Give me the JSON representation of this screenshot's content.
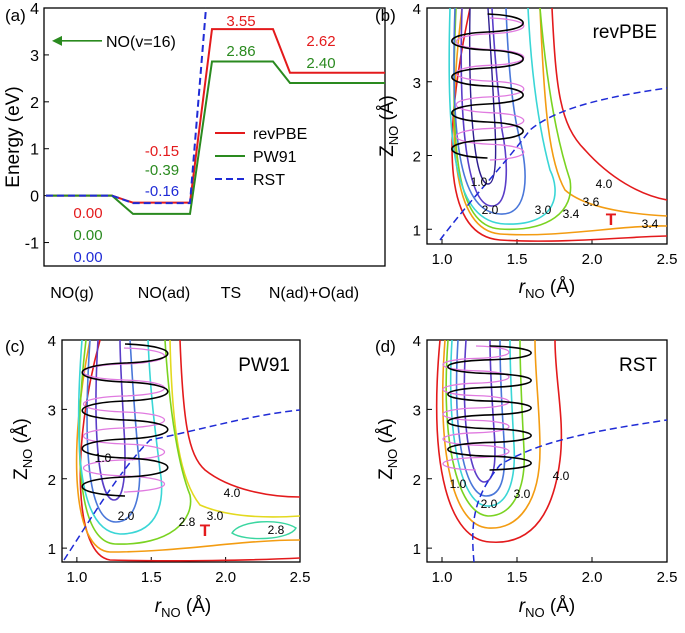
{
  "chart_data": [
    {
      "type": "line",
      "panel_label": "(a)",
      "ylabel": "Energy (eV)",
      "ylim": [
        -1.5,
        4
      ],
      "yticks": [
        "-1",
        "0",
        "1",
        "2",
        "3",
        "4"
      ],
      "yticks_values": [
        -1,
        0,
        1,
        2,
        3,
        4
      ],
      "categories": [
        "NO(g)",
        "NO(ad)",
        "TS",
        "N(ad)+O(ad)"
      ],
      "annotation": "NO(v=16)",
      "annotation_value": 3.3,
      "series": [
        {
          "name": "revPBE",
          "color": "#e31a1c",
          "style": "solid",
          "values": [
            0.0,
            -0.15,
            3.55,
            2.62
          ],
          "labels": [
            "0.00",
            "-0.15",
            "3.55",
            "2.62"
          ]
        },
        {
          "name": "PW91",
          "color": "#2a8a1f",
          "style": "solid",
          "values": [
            0.0,
            -0.39,
            2.86,
            2.4
          ],
          "labels": [
            "0.00",
            "-0.39",
            "2.86",
            "2.40"
          ]
        },
        {
          "name": "RST",
          "color": "#1f2bd6",
          "style": "dashed",
          "values": [
            0.0,
            -0.16,
            null,
            null
          ],
          "labels": [
            "0.00",
            "-0.16",
            "",
            ""
          ]
        }
      ]
    },
    {
      "type": "contour",
      "panel_label": "(b)",
      "title": "revPBE",
      "xlabel_main": "r",
      "xlabel_sub": "NO",
      "xlabel_unit": " (Å)",
      "ylabel_main": "Z",
      "ylabel_sub": "NO",
      "ylabel_unit": " (Å)",
      "xlim": [
        0.9,
        2.5
      ],
      "ylim": [
        0.8,
        4.0
      ],
      "xticks": [
        "1.0",
        "1.5",
        "2.0",
        "2.5"
      ],
      "xticks_values": [
        1.0,
        1.5,
        2.0,
        2.5
      ],
      "yticks": [
        "1",
        "2",
        "3",
        "4"
      ],
      "yticks_values": [
        1,
        2,
        3,
        4
      ],
      "contour_labels": [
        "1.0",
        "2.0",
        "3.0",
        "3.4",
        "3.6",
        "4.0",
        "3.4"
      ],
      "ts_marker": "T"
    },
    {
      "type": "contour",
      "panel_label": "(c)",
      "title": "PW91",
      "xlabel_main": "r",
      "xlabel_sub": "NO",
      "xlabel_unit": " (Å)",
      "ylabel_main": "Z",
      "ylabel_sub": "NO",
      "ylabel_unit": " (Å)",
      "xlim": [
        0.9,
        2.5
      ],
      "ylim": [
        0.8,
        4.0
      ],
      "xticks": [
        "1.0",
        "1.5",
        "2.0",
        "2.5"
      ],
      "xticks_values": [
        1.0,
        1.5,
        2.0,
        2.5
      ],
      "yticks": [
        "1",
        "2",
        "3",
        "4"
      ],
      "yticks_values": [
        1,
        2,
        3,
        4
      ],
      "contour_labels": [
        "1.0",
        "2.0",
        "2.8",
        "3.0",
        "4.0",
        "2.8"
      ],
      "ts_marker": "T"
    },
    {
      "type": "contour",
      "panel_label": "(d)",
      "title": "RST",
      "xlabel_main": "r",
      "xlabel_sub": "NO",
      "xlabel_unit": " (Å)",
      "ylabel_main": "Z",
      "ylabel_sub": "NO",
      "ylabel_unit": " (Å)",
      "xlim": [
        0.9,
        2.5
      ],
      "ylim": [
        0.8,
        4.0
      ],
      "xticks": [
        "1.0",
        "1.5",
        "2.0",
        "2.5"
      ],
      "xticks_values": [
        1.0,
        1.5,
        2.0,
        2.5
      ],
      "yticks": [
        "1",
        "2",
        "3",
        "4"
      ],
      "yticks_values": [
        1,
        2,
        3,
        4
      ],
      "contour_labels": [
        "1.0",
        "2.0",
        "3.0",
        "4.0"
      ]
    }
  ]
}
